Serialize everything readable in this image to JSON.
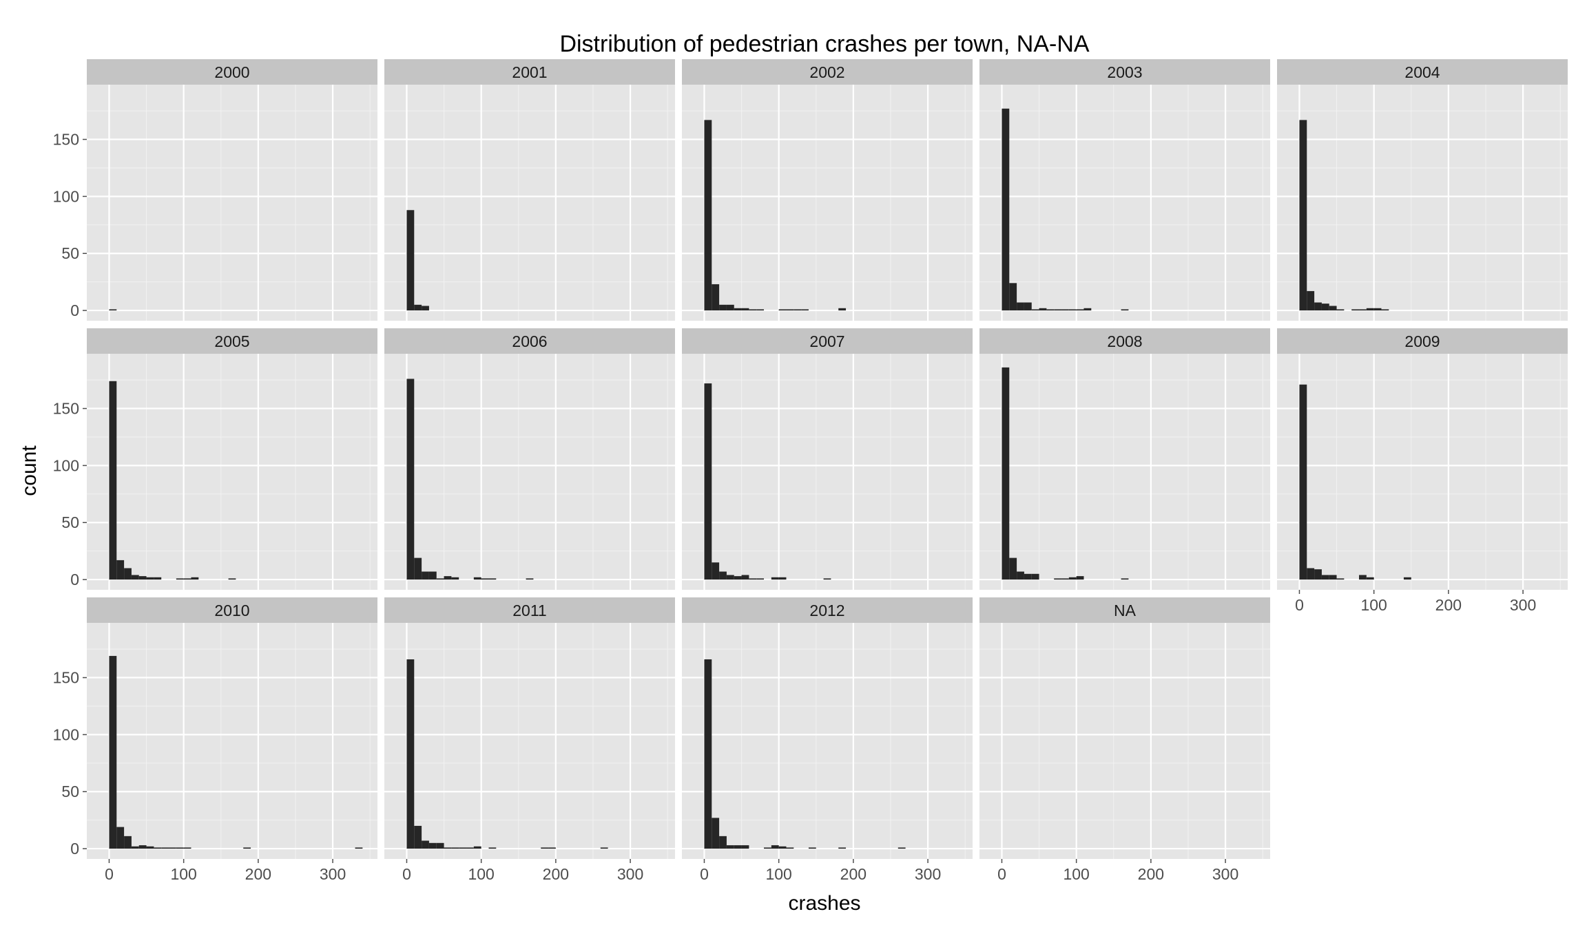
{
  "chart_data": {
    "type": "bar",
    "subtype": "faceted-histogram",
    "title": "Distribution of pedestrian crashes per town, NA-NA",
    "xlabel": "crashes",
    "ylabel": "count",
    "xlim": [
      -30,
      360
    ],
    "ylim": [
      -9,
      198
    ],
    "x_ticks": [
      0,
      100,
      200,
      300
    ],
    "y_ticks": [
      0,
      50,
      100,
      150
    ],
    "grid": true,
    "facet_layout": {
      "rows": 3,
      "cols": 5
    },
    "bin_width": 10,
    "bin_starts": [
      0,
      10,
      20,
      30,
      40,
      50,
      60,
      70,
      80,
      90,
      100,
      110,
      120,
      130,
      140,
      150,
      160,
      170,
      180,
      190,
      200,
      210,
      220,
      230,
      240,
      250,
      260,
      270,
      280,
      290,
      300,
      310,
      320,
      330
    ],
    "bar_color": "#262626",
    "panel_background": "#e5e5e5",
    "strip_background": "#c4c4c4",
    "facets": [
      {
        "label": "2000",
        "counts": [
          1,
          0,
          0,
          0,
          0,
          0,
          0,
          0,
          0,
          0,
          0,
          0,
          0,
          0,
          0,
          0,
          0,
          0,
          0,
          0,
          0,
          0,
          0,
          0,
          0,
          0,
          0,
          0,
          0,
          0,
          0,
          0,
          0,
          0
        ]
      },
      {
        "label": "2001",
        "counts": [
          88,
          5,
          4,
          0,
          0,
          0,
          0,
          0,
          0,
          0,
          0,
          0,
          0,
          0,
          0,
          0,
          0,
          0,
          0,
          0,
          0,
          0,
          0,
          0,
          0,
          0,
          0,
          0,
          0,
          0,
          0,
          0,
          0,
          0
        ]
      },
      {
        "label": "2002",
        "counts": [
          167,
          23,
          5,
          5,
          2,
          2,
          1,
          1,
          0,
          0,
          1,
          1,
          1,
          1,
          0,
          0,
          0,
          0,
          2,
          0,
          0,
          0,
          0,
          0,
          0,
          0,
          0,
          0,
          0,
          0,
          0,
          0,
          0,
          0
        ]
      },
      {
        "label": "2003",
        "counts": [
          177,
          24,
          7,
          7,
          1,
          2,
          1,
          1,
          1,
          1,
          1,
          2,
          0,
          0,
          0,
          0,
          1,
          0,
          0,
          0,
          0,
          0,
          0,
          0,
          0,
          0,
          0,
          0,
          0,
          0,
          0,
          0,
          0,
          0
        ]
      },
      {
        "label": "2004",
        "counts": [
          167,
          17,
          7,
          6,
          4,
          1,
          0,
          1,
          1,
          2,
          2,
          1,
          0,
          0,
          0,
          0,
          0,
          0,
          0,
          0,
          0,
          0,
          0,
          0,
          0,
          0,
          0,
          0,
          0,
          0,
          0,
          0,
          0,
          0
        ]
      },
      {
        "label": "2005",
        "counts": [
          174,
          17,
          10,
          4,
          3,
          2,
          2,
          0,
          0,
          1,
          1,
          2,
          0,
          0,
          0,
          0,
          1,
          0,
          0,
          0,
          0,
          0,
          0,
          0,
          0,
          0,
          0,
          0,
          0,
          0,
          0,
          0,
          0,
          0
        ]
      },
      {
        "label": "2006",
        "counts": [
          176,
          19,
          7,
          7,
          1,
          3,
          2,
          0,
          0,
          2,
          1,
          1,
          0,
          0,
          0,
          0,
          1,
          0,
          0,
          0,
          0,
          0,
          0,
          0,
          0,
          0,
          0,
          0,
          0,
          0,
          0,
          0,
          0,
          0
        ]
      },
      {
        "label": "2007",
        "counts": [
          172,
          15,
          7,
          4,
          3,
          4,
          1,
          1,
          0,
          2,
          2,
          0,
          0,
          0,
          0,
          0,
          1,
          0,
          0,
          0,
          0,
          0,
          0,
          0,
          0,
          0,
          0,
          0,
          0,
          0,
          0,
          0,
          0,
          0
        ]
      },
      {
        "label": "2008",
        "counts": [
          186,
          19,
          7,
          5,
          5,
          0,
          0,
          1,
          1,
          2,
          3,
          0,
          0,
          0,
          0,
          0,
          1,
          0,
          0,
          0,
          0,
          0,
          0,
          0,
          0,
          0,
          0,
          0,
          0,
          0,
          0,
          0,
          0,
          0
        ]
      },
      {
        "label": "2009",
        "counts": [
          171,
          10,
          9,
          4,
          4,
          1,
          0,
          0,
          4,
          2,
          0,
          0,
          0,
          0,
          2,
          0,
          0,
          0,
          0,
          0,
          0,
          0,
          0,
          0,
          0,
          0,
          0,
          0,
          0,
          0,
          0,
          0,
          0,
          0
        ]
      },
      {
        "label": "2010",
        "counts": [
          169,
          19,
          11,
          2,
          3,
          2,
          1,
          1,
          1,
          1,
          1,
          0,
          0,
          0,
          0,
          0,
          0,
          0,
          1,
          0,
          0,
          0,
          0,
          0,
          0,
          0,
          0,
          0,
          0,
          0,
          0,
          0,
          0,
          1
        ]
      },
      {
        "label": "2011",
        "counts": [
          166,
          20,
          7,
          5,
          5,
          1,
          1,
          1,
          1,
          2,
          0,
          1,
          0,
          0,
          0,
          0,
          0,
          0,
          1,
          1,
          0,
          0,
          0,
          0,
          0,
          0,
          1,
          0,
          0,
          0,
          0,
          0,
          0,
          0
        ]
      },
      {
        "label": "2012",
        "counts": [
          166,
          27,
          11,
          3,
          3,
          3,
          0,
          0,
          1,
          3,
          2,
          1,
          0,
          0,
          1,
          0,
          0,
          0,
          1,
          0,
          0,
          0,
          0,
          0,
          0,
          0,
          1,
          0,
          0,
          0,
          0,
          0,
          0,
          0
        ]
      },
      {
        "label": "NA",
        "counts": [
          0,
          0,
          0,
          0,
          0,
          0,
          0,
          0,
          0,
          0,
          0,
          0,
          0,
          0,
          0,
          0,
          0,
          0,
          0,
          0,
          0,
          0,
          0,
          0,
          0,
          0,
          0,
          0,
          0,
          0,
          0,
          0,
          0,
          0
        ]
      }
    ]
  }
}
